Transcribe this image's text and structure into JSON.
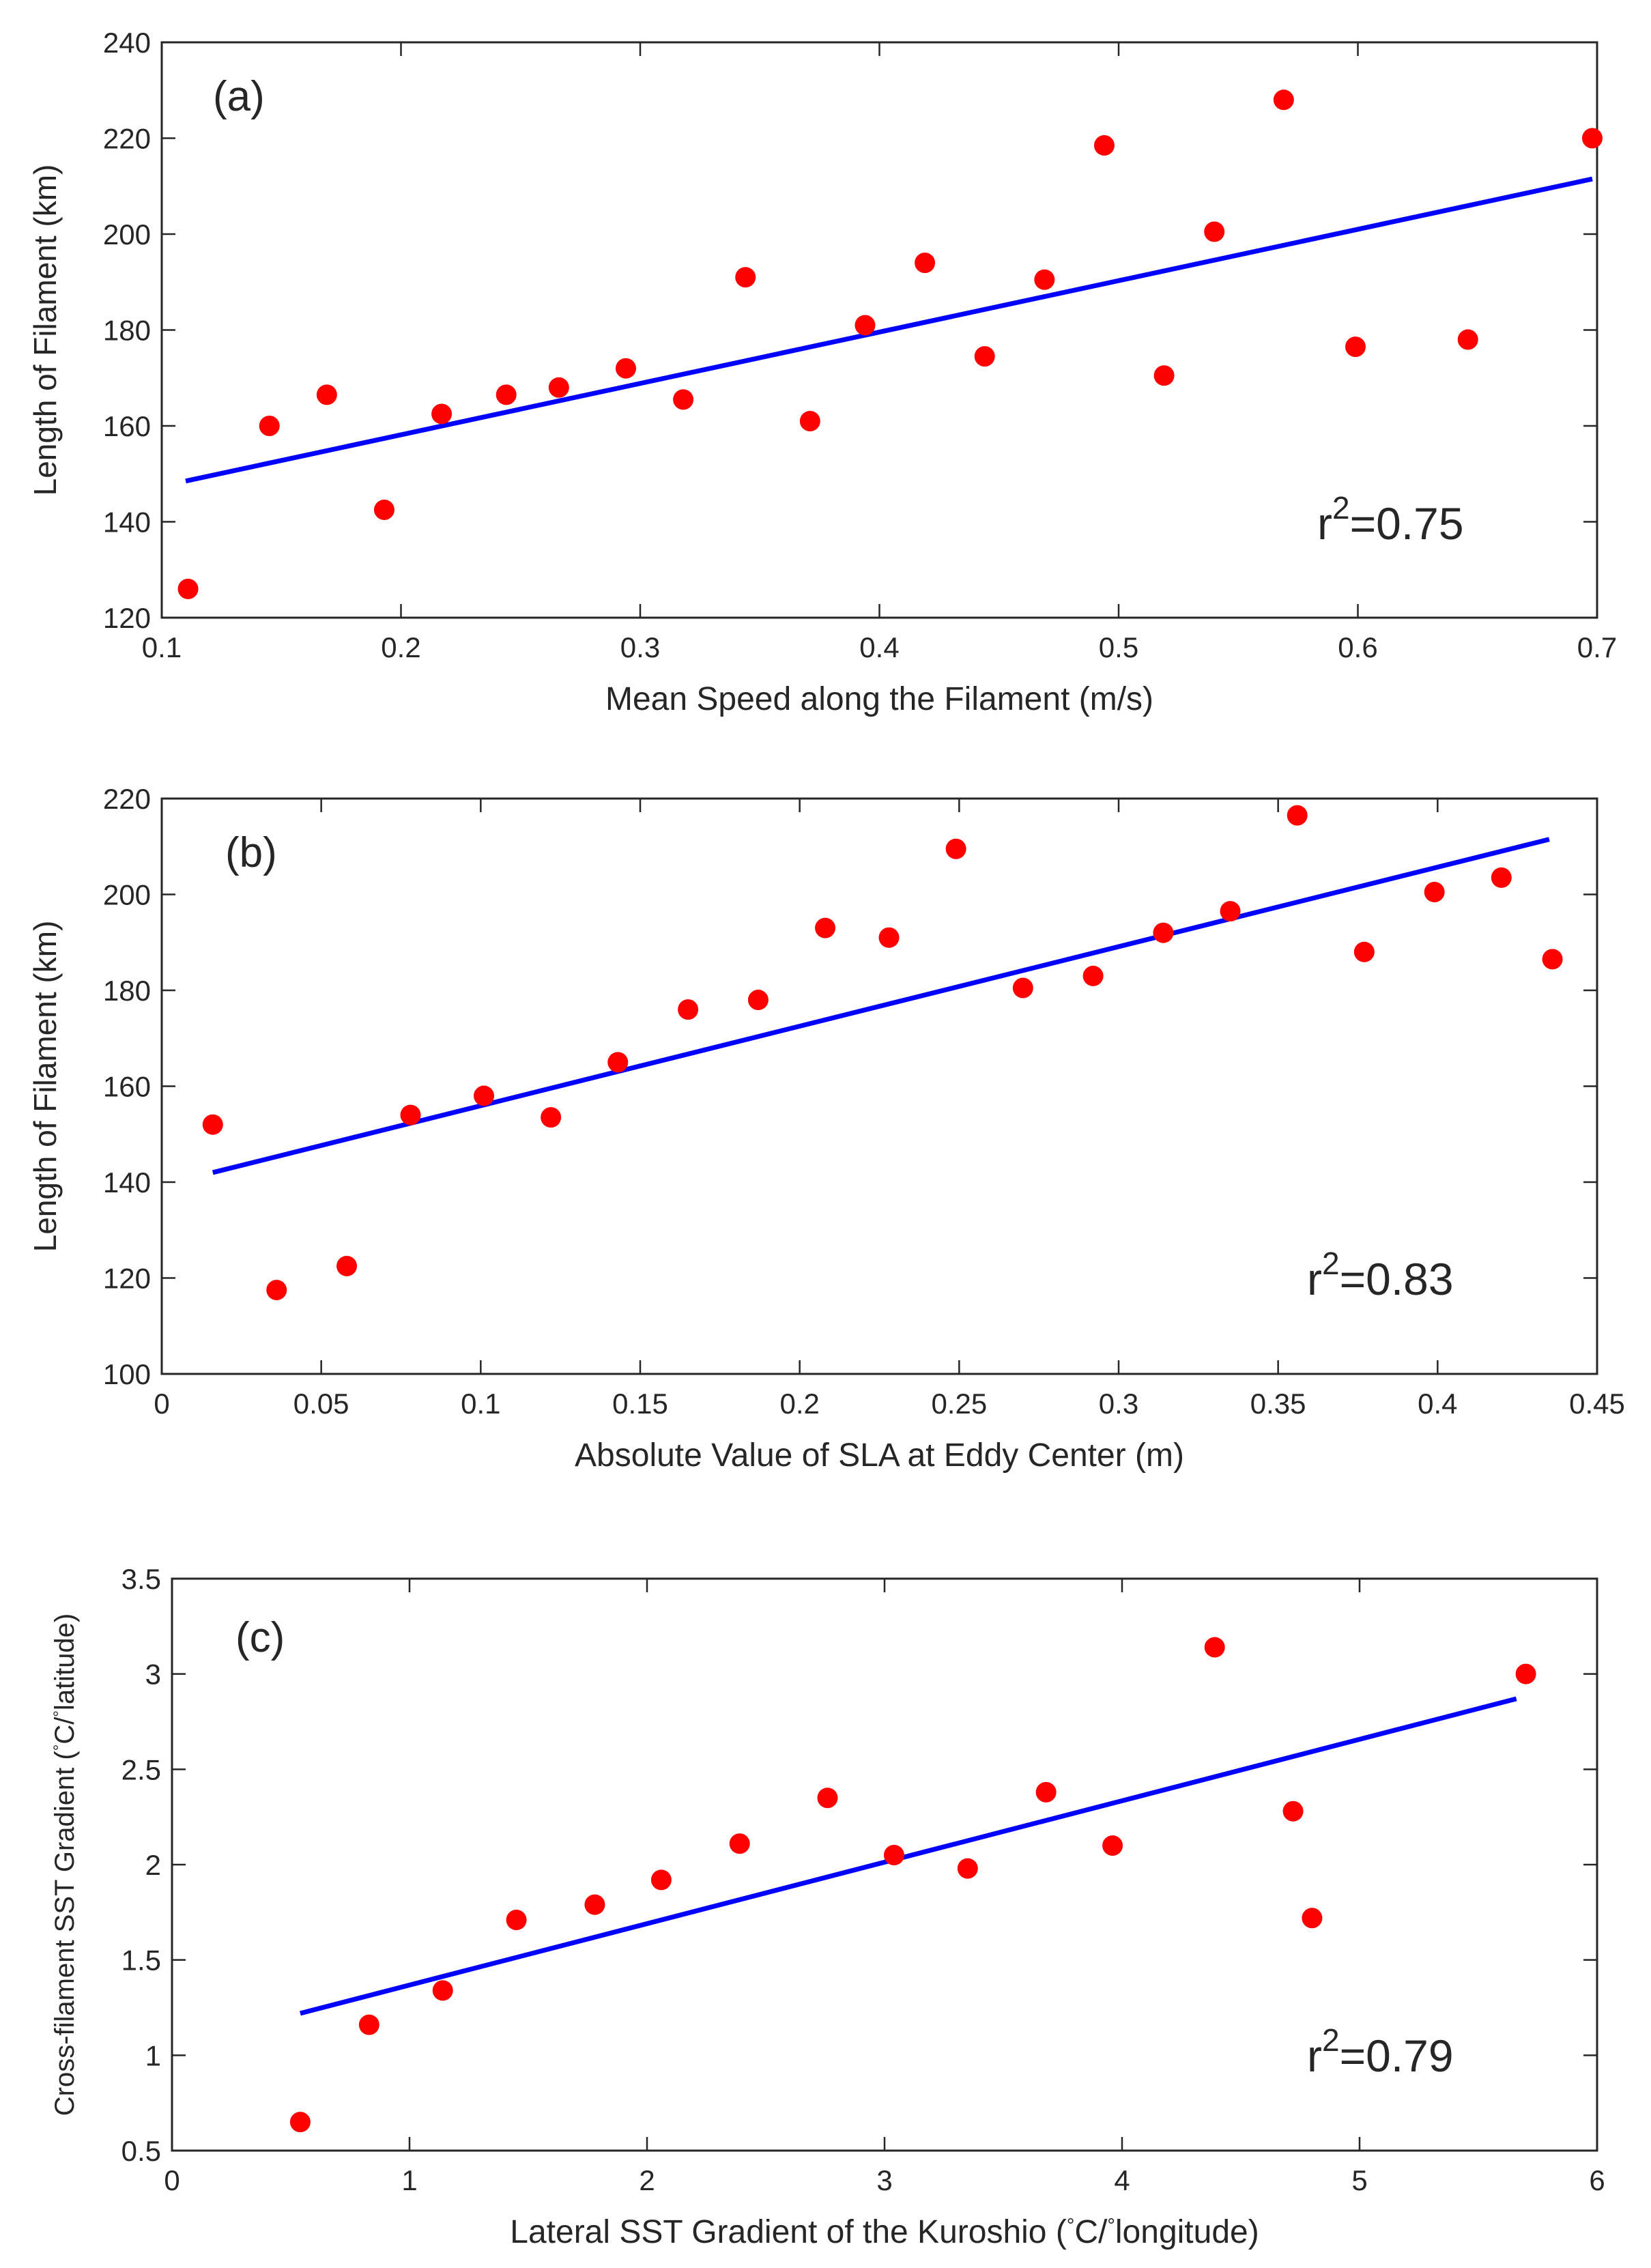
{
  "colors": {
    "points": "#ff0000",
    "fit_line": "#0000ff",
    "axis": "#262626"
  },
  "chart_data": [
    {
      "type": "scatter",
      "panel_label": "(a)",
      "xlabel": "Mean Speed along the Filament (m/s)",
      "ylabel": "Length of Filament (km)",
      "xlim": [
        0.1,
        0.7
      ],
      "ylim": [
        120,
        240
      ],
      "xticks": [
        0.1,
        0.2,
        0.3,
        0.4,
        0.5,
        0.6,
        0.7
      ],
      "xtick_labels": [
        "0.1",
        "0.2",
        "0.3",
        "0.4",
        "0.5",
        "0.6",
        "0.7"
      ],
      "yticks": [
        120,
        140,
        160,
        180,
        200,
        220,
        240
      ],
      "ytick_labels": [
        "120",
        "140",
        "160",
        "180",
        "200",
        "220",
        "240"
      ],
      "points": [
        [
          0.111,
          126
        ],
        [
          0.145,
          160
        ],
        [
          0.169,
          166.5
        ],
        [
          0.193,
          142.5
        ],
        [
          0.217,
          162.5
        ],
        [
          0.244,
          166.5
        ],
        [
          0.266,
          168
        ],
        [
          0.294,
          172
        ],
        [
          0.318,
          165.5
        ],
        [
          0.344,
          191
        ],
        [
          0.371,
          161
        ],
        [
          0.394,
          181
        ],
        [
          0.419,
          194
        ],
        [
          0.444,
          174.5
        ],
        [
          0.469,
          190.5
        ],
        [
          0.494,
          218.5
        ],
        [
          0.519,
          170.5
        ],
        [
          0.54,
          200.5
        ],
        [
          0.569,
          228
        ],
        [
          0.599,
          176.5
        ],
        [
          0.646,
          178
        ],
        [
          0.698,
          220
        ]
      ],
      "fit_line": {
        "x": [
          0.11,
          0.698
        ],
        "y": [
          148.5,
          211.5
        ]
      },
      "annotation": {
        "base": "r",
        "sup": "2",
        "value": "=0.75"
      }
    },
    {
      "type": "scatter",
      "panel_label": "(b)",
      "xlabel": "Absolute Value of SLA at Eddy Center (m)",
      "ylabel": "Length of Filament (km)",
      "xlim": [
        0,
        0.45
      ],
      "ylim": [
        100,
        220
      ],
      "xticks": [
        0,
        0.05,
        0.1,
        0.15,
        0.2,
        0.25,
        0.3,
        0.35,
        0.4,
        0.45
      ],
      "xtick_labels": [
        "0",
        "0.05",
        "0.1",
        "0.15",
        "0.2",
        "0.25",
        "0.3",
        "0.35",
        "0.4",
        "0.45"
      ],
      "yticks": [
        100,
        120,
        140,
        160,
        180,
        200,
        220
      ],
      "ytick_labels": [
        "100",
        "120",
        "140",
        "160",
        "180",
        "200",
        "220"
      ],
      "points": [
        [
          0.016,
          152
        ],
        [
          0.036,
          117.5
        ],
        [
          0.058,
          122.5
        ],
        [
          0.078,
          154
        ],
        [
          0.101,
          158
        ],
        [
          0.122,
          153.5
        ],
        [
          0.143,
          165
        ],
        [
          0.165,
          176
        ],
        [
          0.187,
          178
        ],
        [
          0.208,
          193
        ],
        [
          0.228,
          191
        ],
        [
          0.249,
          209.5
        ],
        [
          0.27,
          180.5
        ],
        [
          0.292,
          183
        ],
        [
          0.314,
          192
        ],
        [
          0.335,
          196.5
        ],
        [
          0.356,
          216.5
        ],
        [
          0.377,
          188
        ],
        [
          0.399,
          200.5
        ],
        [
          0.42,
          203.5
        ],
        [
          0.436,
          186.5
        ]
      ],
      "fit_line": {
        "x": [
          0.016,
          0.435
        ],
        "y": [
          142,
          211.5
        ]
      },
      "annotation": {
        "base": "r",
        "sup": "2",
        "value": "=0.83"
      }
    },
    {
      "type": "scatter",
      "panel_label": "(c)",
      "xlabel": "Lateral SST Gradient of the Kuroshio (°C/°longitude)",
      "ylabel": "Cross-filament SST Gradient (°C/°latitude)",
      "xlim": [
        0,
        6
      ],
      "ylim": [
        0.5,
        3.5
      ],
      "xticks": [
        0,
        1,
        2,
        3,
        4,
        5,
        6
      ],
      "xtick_labels": [
        "0",
        "1",
        "2",
        "3",
        "4",
        "5",
        "6"
      ],
      "yticks": [
        0.5,
        1,
        1.5,
        2,
        2.5,
        3,
        3.5
      ],
      "ytick_labels": [
        "0.5",
        "1",
        "1.5",
        "2",
        "2.5",
        "3",
        "3.5"
      ],
      "points": [
        [
          0.54,
          0.65
        ],
        [
          0.83,
          1.16
        ],
        [
          1.14,
          1.34
        ],
        [
          1.45,
          1.71
        ],
        [
          1.78,
          1.79
        ],
        [
          2.06,
          1.92
        ],
        [
          2.39,
          2.11
        ],
        [
          2.76,
          2.35
        ],
        [
          3.04,
          2.05
        ],
        [
          3.35,
          1.98
        ],
        [
          3.68,
          2.38
        ],
        [
          3.96,
          2.1
        ],
        [
          4.39,
          3.14
        ],
        [
          4.72,
          2.28
        ],
        [
          4.8,
          1.72
        ],
        [
          5.7,
          3.0
        ]
      ],
      "fit_line": {
        "x": [
          0.54,
          5.66
        ],
        "y": [
          1.22,
          2.87
        ]
      },
      "annotation": {
        "base": "r",
        "sup": "2",
        "value": "=0.79"
      }
    }
  ]
}
